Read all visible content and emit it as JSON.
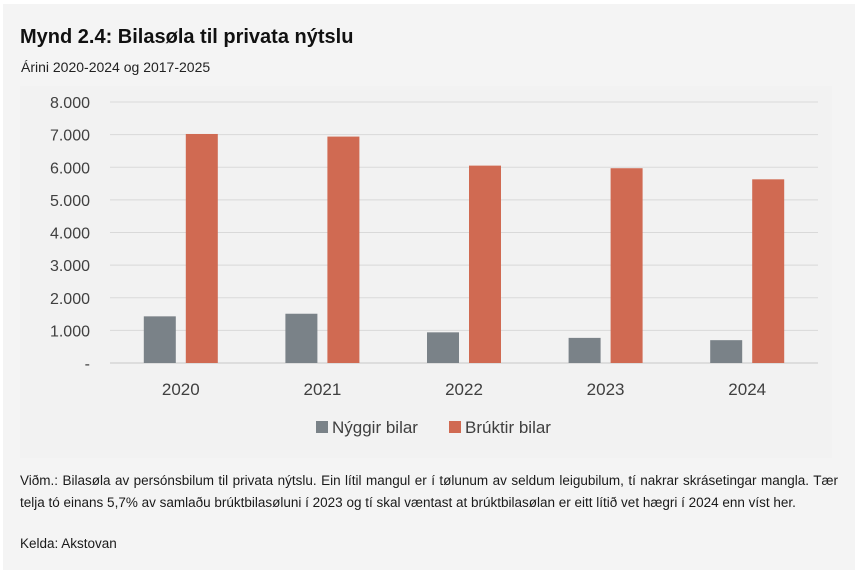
{
  "figure": {
    "title": "Mynd 2.4: Bilasøla til privata nýtslu",
    "subtitle": "Árini 2020-2024 og 2017-2025",
    "note": "Viðm.: Bilasøla av persónsbilum til privata nýtslu. Ein lítil mangul er í tølunum av seldum leigubilum, tí nakrar skrásetingar mangla. Tær telja tó einans 5,7% av samlaðu brúktbilasøluni í 2023 og tí skal væntast at brúktbilasølan er eitt lítið vet hægri í 2024 enn víst her.",
    "source": "Kelda: Akstovan"
  },
  "chart_data": {
    "type": "bar",
    "categories": [
      "2020",
      "2021",
      "2022",
      "2023",
      "2024"
    ],
    "series": [
      {
        "name": "Nýggir bilar",
        "color": "#7a8288",
        "values": [
          1430,
          1510,
          940,
          770,
          700
        ]
      },
      {
        "name": "Brúktir bilar",
        "color": "#d06a52",
        "values": [
          7020,
          6940,
          6050,
          5970,
          5630
        ]
      }
    ],
    "ylim": [
      0,
      8000
    ],
    "yticks": [
      0,
      1000,
      2000,
      3000,
      4000,
      5000,
      6000,
      7000,
      8000
    ],
    "ytick_labels": [
      "-",
      "1.000",
      "2.000",
      "3.000",
      "4.000",
      "5.000",
      "6.000",
      "7.000",
      "8.000"
    ],
    "grid": true,
    "legend_position": "bottom"
  }
}
